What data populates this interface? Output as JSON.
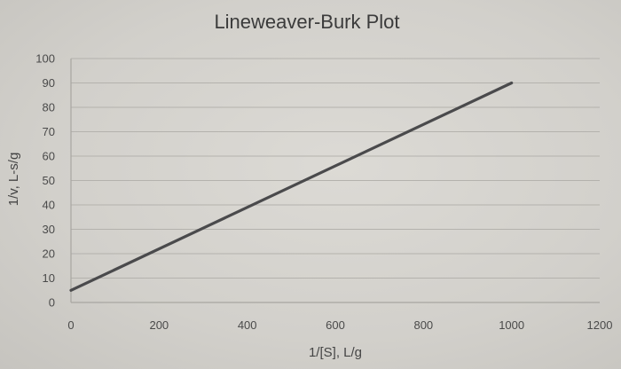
{
  "chart_data": {
    "type": "line",
    "title": "Lineweaver-Burk Plot",
    "xlabel": "1/[S], L/g",
    "ylabel": "1/v, L-s/g",
    "xlim": [
      0,
      1200
    ],
    "ylim": [
      0,
      100
    ],
    "x_ticks": [
      "0",
      "200",
      "400",
      "600",
      "800",
      "1000",
      "1200"
    ],
    "y_ticks": [
      "0",
      "10",
      "20",
      "30",
      "40",
      "50",
      "60",
      "70",
      "80",
      "90",
      "100"
    ],
    "grid": true,
    "legend": "none",
    "series": [
      {
        "x": [
          0,
          1000
        ],
        "y": [
          5,
          90
        ],
        "color": "#4a4a4c"
      }
    ]
  }
}
